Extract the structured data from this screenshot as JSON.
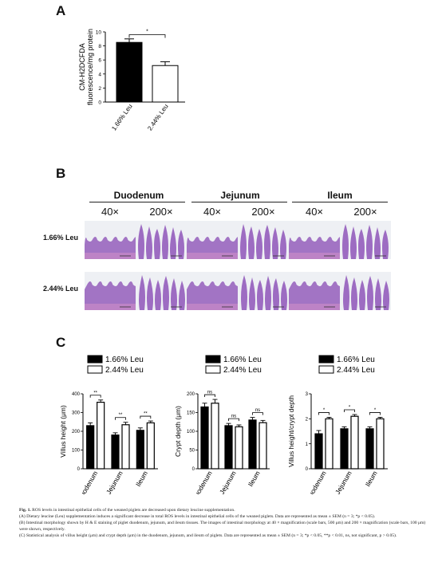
{
  "panels": {
    "a": "A",
    "b": "B",
    "c": "C"
  },
  "chart_data": [
    {
      "type": "bar",
      "panel": "A",
      "categories": [
        "1.66% Leu",
        "2.44% Leu"
      ],
      "values": [
        8.5,
        5.2
      ],
      "errors": [
        0.5,
        0.55
      ],
      "ylabel": "CM-H2DCFDA fluorescence/mg protein",
      "ylim": [
        0,
        10
      ],
      "yticks": [
        "0",
        "2",
        "4",
        "6",
        "8",
        "10"
      ],
      "significance": "*",
      "colors": [
        "#000000",
        "#ffffff"
      ]
    },
    {
      "type": "bar",
      "panel": "C1",
      "categories": [
        "Duodenum",
        "Jejunum",
        "Ileum"
      ],
      "series": [
        {
          "name": "1.66% Leu",
          "values": [
            230,
            180,
            205
          ],
          "errors": [
            15,
            12,
            13
          ]
        },
        {
          "name": "2.44% Leu",
          "values": [
            355,
            235,
            245
          ],
          "errors": [
            12,
            13,
            10
          ]
        }
      ],
      "ylabel": "Villus height (μm)",
      "ylim": [
        0,
        400
      ],
      "yticks": [
        "0",
        "100",
        "200",
        "300",
        "400"
      ],
      "significance": [
        "**",
        "**",
        "**"
      ],
      "legend": "top"
    },
    {
      "type": "bar",
      "panel": "C2",
      "categories": [
        "Duodenum",
        "Jejunum",
        "Ileum"
      ],
      "series": [
        {
          "name": "1.66% Leu",
          "values": [
            165,
            115,
            130
          ],
          "errors": [
            10,
            6,
            7
          ]
        },
        {
          "name": "2.44% Leu",
          "values": [
            175,
            112,
            123
          ],
          "errors": [
            10,
            5,
            6
          ]
        }
      ],
      "ylabel": "Crypt depth (μm)",
      "ylim": [
        0,
        200
      ],
      "yticks": [
        "0",
        "50",
        "100",
        "150",
        "200"
      ],
      "significance": [
        "ns",
        "ns",
        "ns"
      ],
      "legend": "top"
    },
    {
      "type": "bar",
      "panel": "C3",
      "categories": [
        "Duodenum",
        "Jejunum",
        "Ileum"
      ],
      "series": [
        {
          "name": "1.66% Leu",
          "values": [
            1.4,
            1.6,
            1.6
          ],
          "errors": [
            0.13,
            0.08,
            0.08
          ]
        },
        {
          "name": "2.44% Leu",
          "values": [
            2.0,
            2.1,
            2.0
          ],
          "errors": [
            0.06,
            0.07,
            0.06
          ]
        }
      ],
      "ylabel": "Villus height/crypt depth",
      "ylim": [
        0,
        3
      ],
      "yticks": [
        "0",
        "1",
        "2",
        "3"
      ],
      "significance": [
        "*",
        "*",
        "*"
      ],
      "legend": "top"
    }
  ],
  "histology": {
    "columns": [
      "Duodenum",
      "Jejunum",
      "Ileum"
    ],
    "magnifications": [
      "40×",
      "200×",
      "40×",
      "200×",
      "40×",
      "200×"
    ],
    "rows": [
      "1.66% Leu",
      "2.44% Leu"
    ],
    "stain_color": "#8e55b8",
    "background_color": "#eef0f4"
  },
  "caption": {
    "fig_label": "Fig. 1.",
    "title": "ROS levels in intestinal epithelial cells of the weaned piglets are decreased upon dietary leucine supplementation.",
    "a": "(A) Dietary leucine (Leu) supplementation induces a significant decrease in total ROS levels in intestinal epithelial cells of the weaned piglets. Data are represented as mean ± SEM (n = 3; *p < 0.05).",
    "b": "(B) Intestinal morphology shown by H & E staining of piglet duodenum, jejunum, and ileum tissues. The images of intestinal morphology at 40 × magnification (scale bars, 500 μm) and 200 × magnification (scale bars, 100 μm) were shown, respectively.",
    "c": "(C) Statistical analysis of villus height (μm) and crypt depth (μm) in the duodenum, jejunum, and ileum of piglets. Data are represented as mean ± SEM (n = 3; *p < 0.05, **p < 0.01, ns, not significant, p > 0.05)."
  }
}
